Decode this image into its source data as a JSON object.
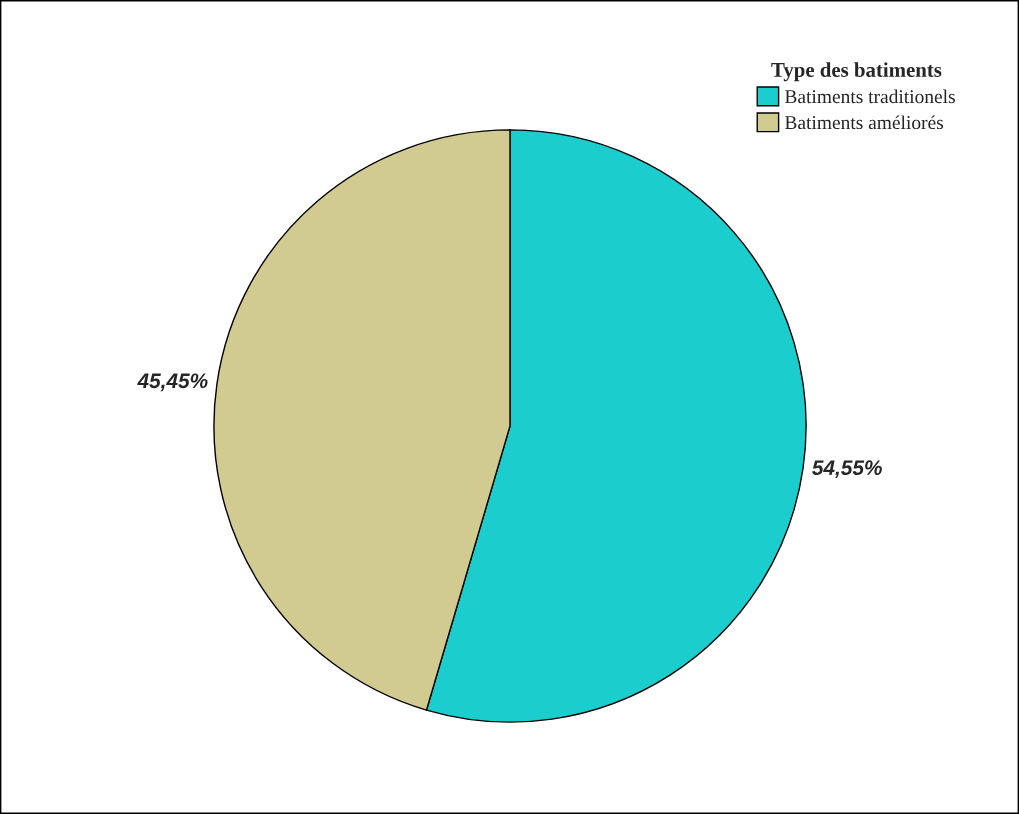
{
  "chart_data": {
    "type": "pie",
    "legend_title": "Type des batiments",
    "categories": [
      "Batiments traditionels",
      "Batiments améliorés"
    ],
    "values": [
      54.55,
      45.45
    ],
    "colors": [
      "#1ccdcd",
      "#d1cb91"
    ],
    "value_labels": [
      "54,55%",
      "45,45%"
    ],
    "legend": "top right"
  }
}
